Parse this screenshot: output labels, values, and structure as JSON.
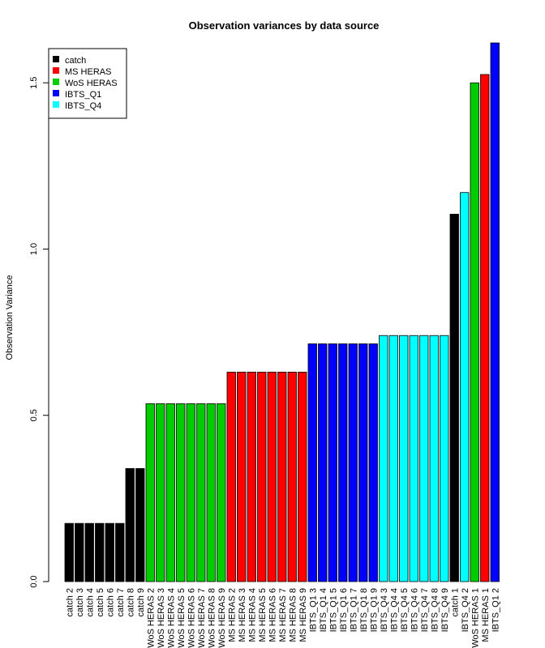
{
  "chart_data": {
    "type": "bar",
    "title": "Observation variances by data source",
    "xlabel": "",
    "ylabel": "Observation Variance",
    "ylim": [
      0,
      1.62
    ],
    "yticks": [
      0.0,
      0.5,
      1.0,
      1.5
    ],
    "ytick_labels": [
      "0.0",
      "0.5",
      "1.0",
      "1.5"
    ],
    "grid": false,
    "legend_position": "top-left",
    "legend": [
      {
        "name": "catch",
        "color": "#000000"
      },
      {
        "name": "MS HERAS",
        "color": "#ff0000"
      },
      {
        "name": "WoS HERAS",
        "color": "#00cd00"
      },
      {
        "name": "IBTS_Q1",
        "color": "#0000ff"
      },
      {
        "name": "IBTS_Q4",
        "color": "#00ffff"
      }
    ],
    "bars": [
      {
        "category": "catch 2",
        "value": 0.175,
        "source": "catch"
      },
      {
        "category": "catch 3",
        "value": 0.175,
        "source": "catch"
      },
      {
        "category": "catch 4",
        "value": 0.175,
        "source": "catch"
      },
      {
        "category": "catch 5",
        "value": 0.175,
        "source": "catch"
      },
      {
        "category": "catch 6",
        "value": 0.175,
        "source": "catch"
      },
      {
        "category": "catch 7",
        "value": 0.175,
        "source": "catch"
      },
      {
        "category": "catch 8",
        "value": 0.34,
        "source": "catch"
      },
      {
        "category": "catch 9",
        "value": 0.34,
        "source": "catch"
      },
      {
        "category": "WoS HERAS 2",
        "value": 0.535,
        "source": "WoS HERAS"
      },
      {
        "category": "WoS HERAS 3",
        "value": 0.535,
        "source": "WoS HERAS"
      },
      {
        "category": "WoS HERAS 4",
        "value": 0.535,
        "source": "WoS HERAS"
      },
      {
        "category": "WoS HERAS 5",
        "value": 0.535,
        "source": "WoS HERAS"
      },
      {
        "category": "WoS HERAS 6",
        "value": 0.535,
        "source": "WoS HERAS"
      },
      {
        "category": "WoS HERAS 7",
        "value": 0.535,
        "source": "WoS HERAS"
      },
      {
        "category": "WoS HERAS 8",
        "value": 0.535,
        "source": "WoS HERAS"
      },
      {
        "category": "WoS HERAS 9",
        "value": 0.535,
        "source": "WoS HERAS"
      },
      {
        "category": "MS HERAS 2",
        "value": 0.63,
        "source": "MS HERAS"
      },
      {
        "category": "MS HERAS 3",
        "value": 0.63,
        "source": "MS HERAS"
      },
      {
        "category": "MS HERAS 4",
        "value": 0.63,
        "source": "MS HERAS"
      },
      {
        "category": "MS HERAS 5",
        "value": 0.63,
        "source": "MS HERAS"
      },
      {
        "category": "MS HERAS 6",
        "value": 0.63,
        "source": "MS HERAS"
      },
      {
        "category": "MS HERAS 7",
        "value": 0.63,
        "source": "MS HERAS"
      },
      {
        "category": "MS HERAS 8",
        "value": 0.63,
        "source": "MS HERAS"
      },
      {
        "category": "MS HERAS 9",
        "value": 0.63,
        "source": "MS HERAS"
      },
      {
        "category": "IBTS_Q1 3",
        "value": 0.715,
        "source": "IBTS_Q1"
      },
      {
        "category": "IBTS_Q1 4",
        "value": 0.715,
        "source": "IBTS_Q1"
      },
      {
        "category": "IBTS_Q1 5",
        "value": 0.715,
        "source": "IBTS_Q1"
      },
      {
        "category": "IBTS_Q1 6",
        "value": 0.715,
        "source": "IBTS_Q1"
      },
      {
        "category": "IBTS_Q1 7",
        "value": 0.715,
        "source": "IBTS_Q1"
      },
      {
        "category": "IBTS_Q1 8",
        "value": 0.715,
        "source": "IBTS_Q1"
      },
      {
        "category": "IBTS_Q1 9",
        "value": 0.715,
        "source": "IBTS_Q1"
      },
      {
        "category": "IBTS_Q4 3",
        "value": 0.74,
        "source": "IBTS_Q4"
      },
      {
        "category": "IBTS_Q4 4",
        "value": 0.74,
        "source": "IBTS_Q4"
      },
      {
        "category": "IBTS_Q4 5",
        "value": 0.74,
        "source": "IBTS_Q4"
      },
      {
        "category": "IBTS_Q4 6",
        "value": 0.74,
        "source": "IBTS_Q4"
      },
      {
        "category": "IBTS_Q4 7",
        "value": 0.74,
        "source": "IBTS_Q4"
      },
      {
        "category": "IBTS_Q4 8",
        "value": 0.74,
        "source": "IBTS_Q4"
      },
      {
        "category": "IBTS_Q4 9",
        "value": 0.74,
        "source": "IBTS_Q4"
      },
      {
        "category": "catch 1",
        "value": 1.105,
        "source": "catch"
      },
      {
        "category": "IBTS_Q4 2",
        "value": 1.17,
        "source": "IBTS_Q4"
      },
      {
        "category": "WoS HERAS 1",
        "value": 1.5,
        "source": "WoS HERAS"
      },
      {
        "category": "MS HERAS 1",
        "value": 1.525,
        "source": "MS HERAS"
      },
      {
        "category": "IBTS_Q1 2",
        "value": 1.62,
        "source": "IBTS_Q1"
      }
    ]
  }
}
